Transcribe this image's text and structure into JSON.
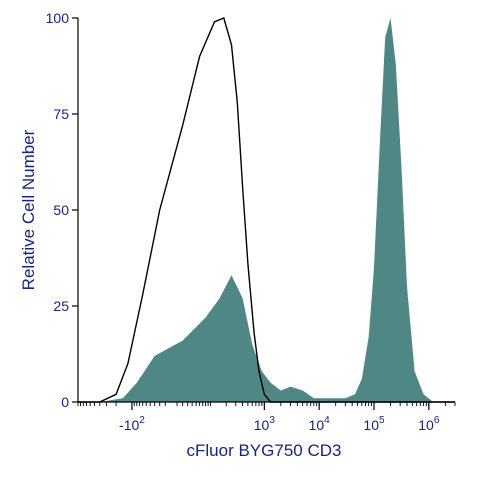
{
  "chart_data": {
    "type": "area",
    "xlabel": "cFluor BYG750 CD3",
    "ylabel": "Relative Cell Number",
    "y_ticks": [
      "0",
      "25",
      "50",
      "75",
      "100"
    ],
    "ylim": [
      0,
      100
    ],
    "x_scale": "biexponential",
    "x_ticks": [
      {
        "base": "-10",
        "exp": "2",
        "value": -100
      },
      {
        "base": "10",
        "exp": "3",
        "value": 1000
      },
      {
        "base": "10",
        "exp": "4",
        "value": 10000
      },
      {
        "base": "10",
        "exp": "5",
        "value": 100000
      },
      {
        "base": "10",
        "exp": "6",
        "value": 1000000
      }
    ],
    "xlim": [
      -1000,
      3000000
    ],
    "grid": false,
    "legend": "none",
    "colors": {
      "axis_text": "#1a237e",
      "filled": "#4f8784",
      "outline": "#000000"
    },
    "series": [
      {
        "style": "filled",
        "x": [
          -1000,
          -400,
          -150,
          -80,
          -30,
          20,
          80,
          150,
          250,
          400,
          600,
          900,
          1300,
          2000,
          3000,
          5000,
          8000,
          12000,
          20000,
          30000,
          45000,
          60000,
          80000,
          100000,
          130000,
          160000,
          200000,
          250000,
          320000,
          400000,
          550000,
          800000,
          1200000,
          3000000
        ],
        "y": [
          0,
          0,
          1,
          5,
          12,
          16,
          22,
          27,
          33,
          27,
          15,
          8,
          5,
          3,
          4,
          3,
          1,
          1,
          1,
          1,
          2,
          6,
          17,
          35,
          70,
          95,
          100,
          88,
          60,
          30,
          8,
          2,
          0,
          0
        ]
      },
      {
        "style": "outline",
        "x": [
          -1000,
          -400,
          -200,
          -120,
          -60,
          -20,
          20,
          60,
          120,
          180,
          250,
          320,
          400,
          500,
          650,
          800,
          1000,
          1300,
          2000,
          3000000
        ],
        "y": [
          0,
          0,
          2,
          10,
          28,
          50,
          72,
          90,
          99,
          100,
          93,
          78,
          56,
          36,
          18,
          8,
          2,
          0,
          0,
          0
        ]
      }
    ]
  }
}
